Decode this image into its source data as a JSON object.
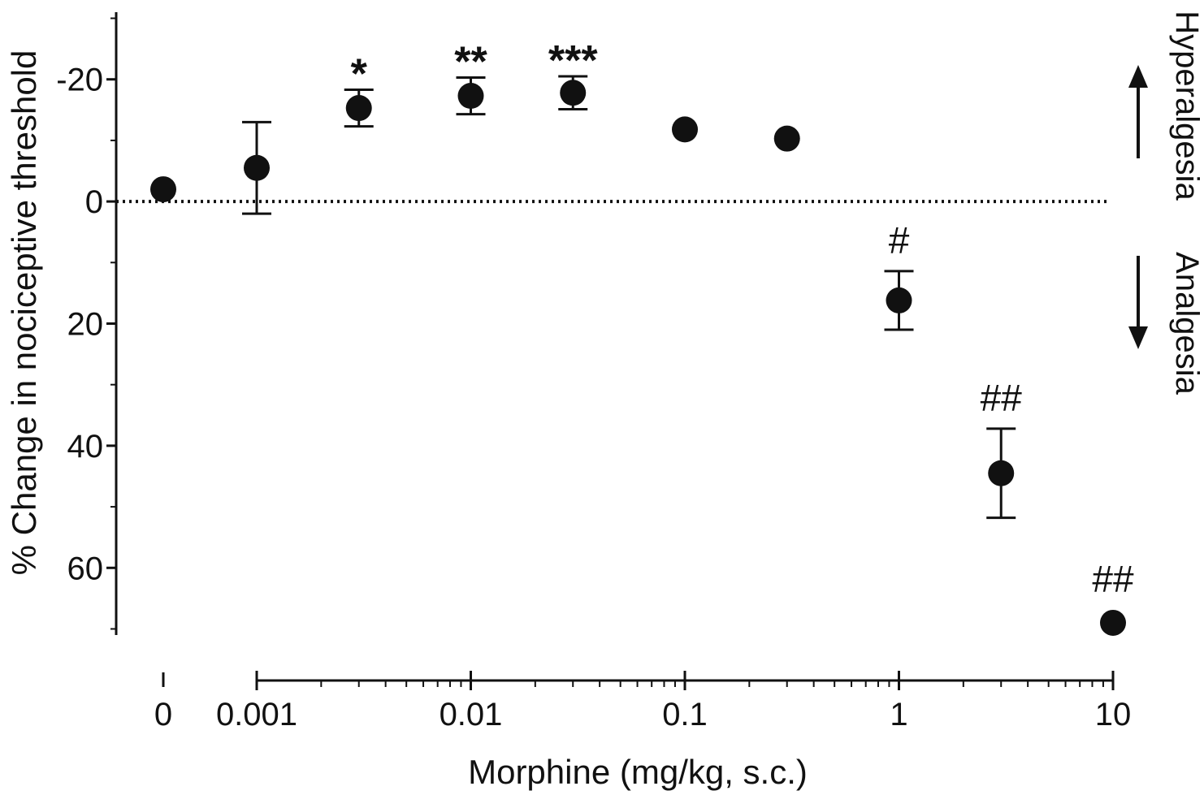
{
  "chart_data": {
    "type": "scatter",
    "title": "",
    "xlabel": "Morphine (mg/kg, s.c.)",
    "ylabel": "% Change in nociceptive threshold",
    "x_scale": "log",
    "x_ticks": [
      "0",
      "0.001",
      "0.01",
      "0.1",
      "1",
      "10"
    ],
    "y_ticks": [
      "-20",
      "0",
      "20",
      "40",
      "60"
    ],
    "ylim": [
      -31,
      71
    ],
    "y_inverted": true,
    "reference_line": 0,
    "direction_labels": {
      "up": "Hyperalgesia",
      "down": "Analgesia"
    },
    "marker_color": "#111111",
    "points": [
      {
        "x": "0",
        "y": -2,
        "err": null,
        "mark": ""
      },
      {
        "x": "0.001",
        "y": -5.5,
        "err": 7.5,
        "mark": ""
      },
      {
        "x": "0.003",
        "y": -15.3,
        "err": 3,
        "mark": "*"
      },
      {
        "x": "0.01",
        "y": -17.3,
        "err": 3,
        "mark": "**"
      },
      {
        "x": "0.03",
        "y": -17.8,
        "err": 2.7,
        "mark": "***"
      },
      {
        "x": "0.1",
        "y": -11.8,
        "err": null,
        "mark": ""
      },
      {
        "x": "0.3",
        "y": -10.3,
        "err": null,
        "mark": ""
      },
      {
        "x": "1",
        "y": 16.2,
        "err": 4.8,
        "mark": "#"
      },
      {
        "x": "3",
        "y": 44.5,
        "err": 7.3,
        "mark": "##"
      },
      {
        "x": "10",
        "y": 69,
        "err": null,
        "mark": "##"
      }
    ]
  }
}
